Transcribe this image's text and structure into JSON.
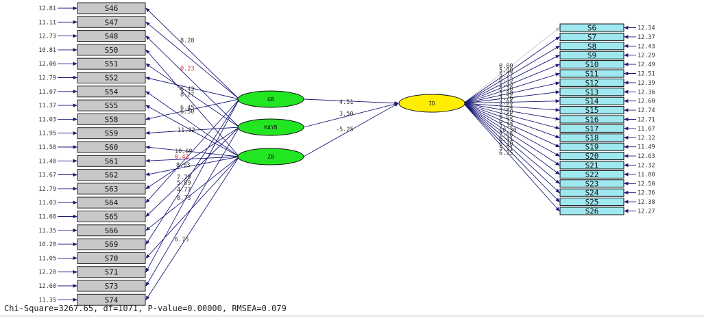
{
  "colors": {
    "left_box_fill": "#c8c8c8",
    "right_box_fill": "#9fe8f0",
    "exogenous_fill": "#22e622",
    "endogenous_fill": "#ffee00",
    "arrow": "#1a1a7a",
    "highlight_arrow": "#c8c8c8",
    "red_label": "#dd2222"
  },
  "latents": {
    "exogenous": [
      "GB",
      "KAYB",
      "ZB"
    ],
    "endogenous": "ID"
  },
  "left_indicators": [
    {
      "name": "S46",
      "error": "12.81",
      "factor": "GB"
    },
    {
      "name": "S47",
      "error": "11.11",
      "factor": "GB"
    },
    {
      "name": "S48",
      "error": "12.73",
      "factor": "KAYB"
    },
    {
      "name": "S50",
      "error": "10.81",
      "factor": "ZB"
    },
    {
      "name": "S51",
      "error": "12.06",
      "factor": "KAYB"
    },
    {
      "name": "S52",
      "error": "12.79",
      "factor": "GB"
    },
    {
      "name": "S54",
      "error": "11.07",
      "factor": "ZB"
    },
    {
      "name": "S55",
      "error": "11.37",
      "factor": "ZB"
    },
    {
      "name": "S58",
      "error": "11.03",
      "factor": "GB"
    },
    {
      "name": "S59",
      "error": "11.95",
      "factor": "KAYB"
    },
    {
      "name": "S60",
      "error": "11.58",
      "factor": "ZB"
    },
    {
      "name": "S61",
      "error": "11.40",
      "factor": "ZB"
    },
    {
      "name": "S62",
      "error": "11.67",
      "factor": "ZB"
    },
    {
      "name": "S63",
      "error": "12.79",
      "factor": "KAYB"
    },
    {
      "name": "S64",
      "error": "11.03",
      "factor": "GB"
    },
    {
      "name": "S65",
      "error": "11.68",
      "factor": "KAYB"
    },
    {
      "name": "S66",
      "error": "11.35",
      "factor": "ZB"
    },
    {
      "name": "S69",
      "error": "10.20",
      "factor": "GB"
    },
    {
      "name": "S70",
      "error": "11.05",
      "factor": "ZB"
    },
    {
      "name": "S71",
      "error": "12.20",
      "factor": "GB"
    },
    {
      "name": "S73",
      "error": "12.60",
      "factor": "KAYB"
    },
    {
      "name": "S74",
      "error": "11.35",
      "factor": "ZB"
    }
  ],
  "right_indicators": [
    {
      "name": "S6",
      "error": "12.34"
    },
    {
      "name": "S7",
      "error": "12.37"
    },
    {
      "name": "S8",
      "error": "12.43"
    },
    {
      "name": "S9",
      "error": "12.29"
    },
    {
      "name": "S10",
      "error": "12.49"
    },
    {
      "name": "S11",
      "error": "12.51"
    },
    {
      "name": "S12",
      "error": "12.39"
    },
    {
      "name": "S13",
      "error": "12.36"
    },
    {
      "name": "S14",
      "error": "12.60"
    },
    {
      "name": "S15",
      "error": "12.74"
    },
    {
      "name": "S16",
      "error": "12.71"
    },
    {
      "name": "S17",
      "error": "11.67"
    },
    {
      "name": "S18",
      "error": "12.12"
    },
    {
      "name": "S19",
      "error": "11.49"
    },
    {
      "name": "S20",
      "error": "12.63"
    },
    {
      "name": "S21",
      "error": "12.32"
    },
    {
      "name": "S22",
      "error": "11.80"
    },
    {
      "name": "S23",
      "error": "12.50"
    },
    {
      "name": "S24",
      "error": "12.36"
    },
    {
      "name": "S25",
      "error": "12.38"
    },
    {
      "name": "S26",
      "error": "12.27"
    }
  ],
  "left_loading_labels": [
    {
      "text": "8.28",
      "red": false
    },
    {
      "text": "0.23",
      "red": true
    },
    {
      "text": "6.43",
      "red": false
    },
    {
      "text": "8.27",
      "red": false
    },
    {
      "text": "6.45",
      "red": false
    },
    {
      "text": "6.50",
      "red": false
    },
    {
      "text": "11.32",
      "red": false
    },
    {
      "text": "10.69",
      "red": false
    },
    {
      "text": "0.43",
      "red": true
    },
    {
      "text": "8.03",
      "red": false
    },
    {
      "text": "7.79",
      "red": false
    },
    {
      "text": "5.89",
      "red": false
    },
    {
      "text": "4.77",
      "red": false
    },
    {
      "text": "8.73",
      "red": false
    },
    {
      "text": "6.75",
      "red": false
    }
  ],
  "right_loading_labels": [
    "0.00",
    "5.90",
    "5.77",
    "6.13",
    "5.43",
    "5.30",
    "5.88",
    "4.76",
    "3.05",
    "3.54",
    "3.10",
    "6.65",
    "6.33",
    "5.32",
    "10.30",
    "7.06",
    "6.41",
    "6.30",
    "5.91",
    "6.25"
  ],
  "structural_paths": [
    {
      "from": "GB",
      "to": "ID",
      "value": "4.51"
    },
    {
      "from": "KAYB",
      "to": "ID",
      "value": "3.50"
    },
    {
      "from": "ZB",
      "to": "ID",
      "value": "-5.25"
    }
  ],
  "fit_statistics": "Chi-Square=3267.65, df=1071, P-value=0.00000, RMSEA=0.079"
}
